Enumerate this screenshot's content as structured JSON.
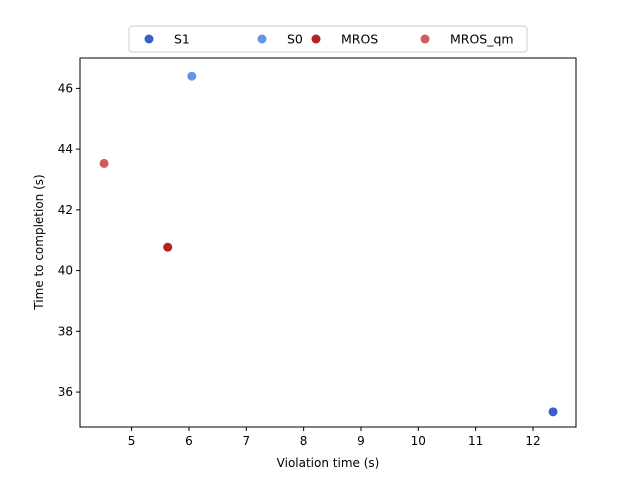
{
  "chart_data": {
    "type": "scatter",
    "title": "",
    "xlabel": "Violation time (s)",
    "ylabel": "Time to completion (s)",
    "xlim": [
      4.1,
      12.75
    ],
    "ylim": [
      34.85,
      47.0
    ],
    "xticks": [
      5,
      6,
      7,
      8,
      9,
      10,
      11,
      12
    ],
    "yticks": [
      36,
      38,
      40,
      42,
      44,
      46
    ],
    "grid": false,
    "legend_placement": "top-center",
    "series": [
      {
        "name": "S1",
        "color": "#3a5fcd",
        "points": [
          {
            "x": 12.35,
            "y": 35.35
          }
        ]
      },
      {
        "name": "S0",
        "color": "#6495ed",
        "points": [
          {
            "x": 6.05,
            "y": 46.4
          }
        ]
      },
      {
        "name": "MROS",
        "color": "#b22222",
        "points": [
          {
            "x": 5.63,
            "y": 40.77
          }
        ]
      },
      {
        "name": "MROS_qm",
        "color": "#cd5c5c",
        "points": [
          {
            "x": 4.52,
            "y": 43.53
          }
        ]
      }
    ]
  }
}
